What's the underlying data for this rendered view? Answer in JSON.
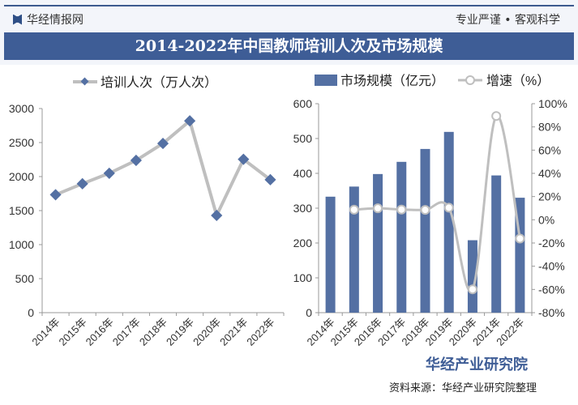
{
  "header": {
    "brand": "华经情报网",
    "slogan": "专业严谨 • 客观科学",
    "title": "2014-2022年中国教师培训人次及市场规模"
  },
  "footer": {
    "logo_text": "华经产业研究院",
    "source": "资料来源：华经产业研究院整理"
  },
  "chart_data": [
    {
      "type": "line",
      "categories": [
        "2014年",
        "2015年",
        "2016年",
        "2017年",
        "2018年",
        "2019年",
        "2020年",
        "2021年",
        "2022年"
      ],
      "series": [
        {
          "name": "培训人次（万人次）",
          "values": [
            1733,
            1895,
            2049,
            2238,
            2487,
            2819,
            1429,
            2254,
            1954
          ],
          "color": "#bfbfbf",
          "marker_color": "#5470a3"
        }
      ],
      "yticks": [
        0,
        500,
        1000,
        1500,
        2000,
        2500,
        3000
      ],
      "ylim": [
        0,
        3000
      ],
      "legend": "top",
      "grid": false
    },
    {
      "type": "bar+line",
      "categories": [
        "2014年",
        "2015年",
        "2016年",
        "2017年",
        "2018年",
        "2019年",
        "2020年",
        "2021年",
        "2022年"
      ],
      "series": [
        {
          "name": "市场规模（亿元）",
          "type": "bar",
          "axis": "left",
          "values": [
            333,
            362,
            398,
            433,
            470,
            519,
            208,
            394,
            330
          ],
          "color": "#5470a3"
        },
        {
          "name": "增速（%）",
          "type": "line",
          "axis": "right",
          "values": [
            null,
            8.7,
            9.9,
            8.8,
            8.5,
            10.4,
            -59.9,
            89.4,
            -16.2
          ],
          "color": "#bfbfbf"
        }
      ],
      "yticks": [
        0,
        100,
        200,
        300,
        400,
        500,
        600
      ],
      "ylim": [
        0,
        600
      ],
      "y2ticks": [
        "-80%",
        "-60%",
        "-40%",
        "-20%",
        "0%",
        "20%",
        "40%",
        "60%",
        "80%",
        "100%"
      ],
      "y2lim": [
        -80,
        100
      ],
      "legend": "top",
      "grid": false
    }
  ]
}
